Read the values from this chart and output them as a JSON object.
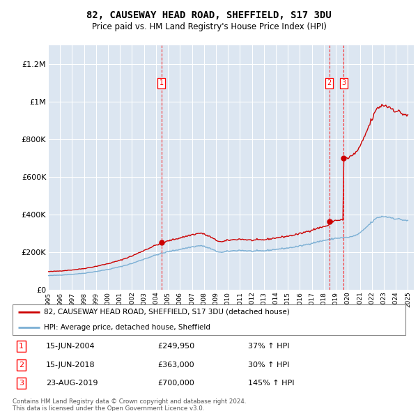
{
  "title": "82, CAUSEWAY HEAD ROAD, SHEFFIELD, S17 3DU",
  "subtitle": "Price paid vs. HM Land Registry's House Price Index (HPI)",
  "title_fontsize": 10,
  "subtitle_fontsize": 8.5,
  "ylabel_ticks": [
    "£0",
    "£200K",
    "£400K",
    "£600K",
    "£800K",
    "£1M",
    "£1.2M"
  ],
  "ytick_values": [
    0,
    200000,
    400000,
    600000,
    800000,
    1000000,
    1200000
  ],
  "ylim": [
    0,
    1300000
  ],
  "xlim_start": 1995.0,
  "xlim_end": 2025.5,
  "background_color": "#dce6f1",
  "plot_bg_color": "#dce6f1",
  "grid_color": "#ffffff",
  "hpi_line_color": "#7bafd4",
  "price_line_color": "#cc0000",
  "transactions": [
    {
      "label": "1",
      "date": "15-JUN-2004",
      "price": 249950,
      "pct": "37%",
      "x_year": 2004.45
    },
    {
      "label": "2",
      "date": "15-JUN-2018",
      "price": 363000,
      "pct": "30%",
      "x_year": 2018.45
    },
    {
      "label": "3",
      "date": "23-AUG-2019",
      "price": 700000,
      "pct": "145%",
      "x_year": 2019.65
    }
  ],
  "legend_line1": "82, CAUSEWAY HEAD ROAD, SHEFFIELD, S17 3DU (detached house)",
  "legend_line2": "HPI: Average price, detached house, Sheffield",
  "footnote1": "Contains HM Land Registry data © Crown copyright and database right 2024.",
  "footnote2": "This data is licensed under the Open Government Licence v3.0.",
  "hpi_base_value": 75000,
  "purchase1_year": 2004.45,
  "purchase1_price": 249950,
  "purchase2_year": 2018.45,
  "purchase2_price": 363000,
  "purchase3_year": 2019.65,
  "purchase3_price": 700000
}
